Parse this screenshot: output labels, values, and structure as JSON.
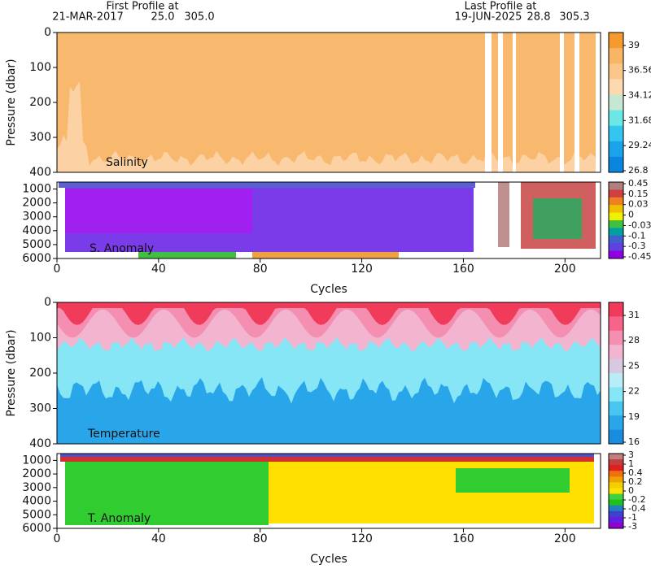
{
  "header": {
    "first_title": "First Profile at",
    "first_date": "21-MAR-2017",
    "first_lat": "25.0",
    "first_lon": "305.0",
    "last_title": "Last Profile at",
    "last_date": "19-JUN-2025",
    "last_lat": "28.8",
    "last_lon": "305.3"
  },
  "chart_data": [
    {
      "type": "contour",
      "label": "Salinity",
      "ylabel": "Pressure (dbar)",
      "xlim": [
        0,
        214
      ],
      "ylim": [
        0,
        400
      ],
      "yticks": [
        0,
        100,
        200,
        300,
        400
      ],
      "colorbar": {
        "ticks": [
          39,
          36.56,
          34.12,
          31.68,
          29.24,
          26.8
        ],
        "colors": [
          "#f79a2e",
          "#f9b566",
          "#fbc68a",
          "#fdd9b0",
          "#c6e8d2",
          "#6de6e6",
          "#35c6ef",
          "#1aa3ea",
          "#0a86e0"
        ]
      }
    },
    {
      "type": "contour",
      "label": "S. Anomaly",
      "xlabel": "Cycles",
      "xlim": [
        0,
        214
      ],
      "xticks": [
        0,
        40,
        80,
        120,
        160,
        200
      ],
      "ylim": [
        500,
        6000
      ],
      "yticks": [
        1000,
        2000,
        3000,
        4000,
        5000,
        6000
      ],
      "colorbar": {
        "ticks": [
          0.45,
          0.15,
          0.03,
          0,
          -0.03,
          -0.1,
          -0.3,
          -0.45
        ],
        "colors": [
          "#b08080",
          "#d04040",
          "#f08020",
          "#f0c000",
          "#f0f000",
          "#40c040",
          "#00a0a0",
          "#4060d0",
          "#6040e0",
          "#9000e0"
        ]
      }
    },
    {
      "type": "contour",
      "label": "Temperature",
      "ylabel": "Pressure (dbar)",
      "xlim": [
        0,
        214
      ],
      "ylim": [
        0,
        400
      ],
      "yticks": [
        0,
        100,
        200,
        300,
        400
      ],
      "colorbar": {
        "ticks": [
          31,
          28,
          25,
          22,
          19,
          16
        ],
        "colors": [
          "#f03c5a",
          "#f7648a",
          "#f48fb1",
          "#f3b4cf",
          "#d8c8e0",
          "#b8ecf6",
          "#86e6f5",
          "#48c6f0",
          "#29a6ea",
          "#1b8be0"
        ]
      }
    },
    {
      "type": "contour",
      "label": "T. Anomaly",
      "xlabel": "Cycles",
      "xlim": [
        0,
        214
      ],
      "xticks": [
        0,
        40,
        80,
        120,
        160,
        200
      ],
      "ylim": [
        500,
        6000
      ],
      "yticks": [
        1000,
        2000,
        3000,
        4000,
        5000,
        6000
      ],
      "colorbar": {
        "ticks": [
          3,
          1,
          0.4,
          0.2,
          0,
          -0.2,
          -0.4,
          -1,
          -3
        ],
        "colors": [
          "#c08080",
          "#c04040",
          "#e02020",
          "#f07010",
          "#f0a000",
          "#f0d000",
          "#ffe000",
          "#40d040",
          "#20c020",
          "#2080c0",
          "#4040d0",
          "#6020e0",
          "#9000d0"
        ]
      }
    }
  ]
}
